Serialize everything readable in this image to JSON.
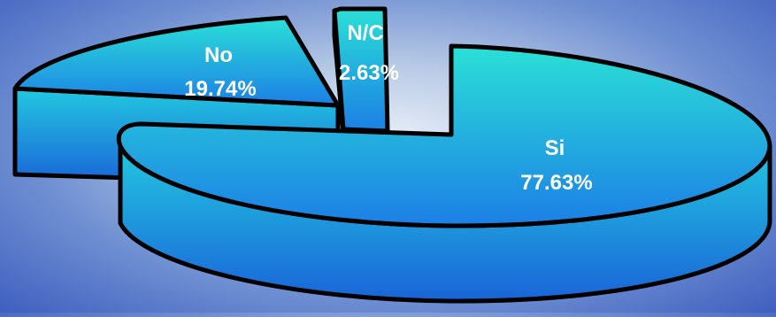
{
  "chart_data": {
    "type": "pie",
    "title": "",
    "three_d": true,
    "exploded": true,
    "slices": [
      {
        "label": "Si",
        "value": 77.63,
        "value_label": "77.63%"
      },
      {
        "label": "No",
        "value": 19.74,
        "value_label": "19.74%"
      },
      {
        "label": "N/C",
        "value": 2.63,
        "value_label": "2.63%"
      }
    ],
    "colors": {
      "top_light": "#2ae0d6",
      "top_dark": "#1c7fe6",
      "side_light": "#22c8e0",
      "side_dark": "#1a64d8",
      "outline": "#000000",
      "label": "#ffffff"
    }
  }
}
